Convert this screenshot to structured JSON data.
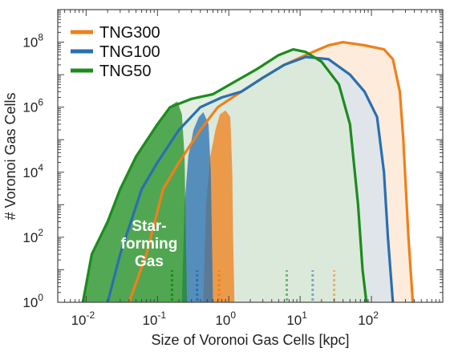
{
  "chart_data": {
    "type": "area",
    "xlabel": "Size of Voronoi Gas Cells [kpc]",
    "ylabel": "# Voronoi Gas Cells",
    "xscale": "log",
    "yscale": "log",
    "xlim": [
      0.004,
      1000
    ],
    "ylim": [
      1,
      1000000000
    ],
    "x_ticks": [
      {
        "value": 0.01,
        "base": "10",
        "exp": "-2"
      },
      {
        "value": 0.1,
        "base": "10",
        "exp": "-1"
      },
      {
        "value": 1,
        "base": "10",
        "exp": "0"
      },
      {
        "value": 10,
        "base": "10",
        "exp": "1"
      },
      {
        "value": 100,
        "base": "10",
        "exp": "2"
      }
    ],
    "y_ticks": [
      {
        "value": 1,
        "base": "10",
        "exp": "0"
      },
      {
        "value": 100,
        "base": "10",
        "exp": "2"
      },
      {
        "value": 10000,
        "base": "10",
        "exp": "4"
      },
      {
        "value": 1000000,
        "base": "10",
        "exp": "6"
      },
      {
        "value": 100000000,
        "base": "10",
        "exp": "8"
      }
    ],
    "legend_position": "top-left",
    "annotation": [
      "Star-",
      "forming",
      "Gas"
    ],
    "series": [
      {
        "name": "TNG300",
        "color": "#f07f1a",
        "all_gas": [
          [
            0.04,
            1
          ],
          [
            0.07,
            30
          ],
          [
            0.12,
            3000
          ],
          [
            0.2,
            20000
          ],
          [
            0.4,
            200000
          ],
          [
            0.7,
            1000000
          ],
          [
            1.5,
            3000000
          ],
          [
            3,
            8000000
          ],
          [
            6,
            20000000
          ],
          [
            12,
            40000000
          ],
          [
            25,
            80000000
          ],
          [
            40,
            100000000
          ],
          [
            80,
            80000000
          ],
          [
            150,
            60000000
          ],
          [
            200,
            30000000
          ],
          [
            250,
            3000000
          ],
          [
            280,
            100000
          ],
          [
            330,
            100
          ],
          [
            380,
            1
          ]
        ],
        "star_forming": [
          [
            0.44,
            1
          ],
          [
            0.48,
            1000
          ],
          [
            0.55,
            30000
          ],
          [
            0.65,
            200000
          ],
          [
            0.75,
            600000
          ],
          [
            0.9,
            800000
          ],
          [
            1.05,
            500000
          ],
          [
            1.12,
            10000
          ],
          [
            1.15,
            100
          ],
          [
            1.2,
            1
          ]
        ],
        "median_all": 30,
        "median_sf": 0.73
      },
      {
        "name": "TNG100",
        "color": "#2a6fb0",
        "all_gas": [
          [
            0.02,
            1
          ],
          [
            0.03,
            30
          ],
          [
            0.06,
            3000
          ],
          [
            0.1,
            20000
          ],
          [
            0.2,
            200000
          ],
          [
            0.4,
            1000000
          ],
          [
            0.8,
            2000000
          ],
          [
            1.5,
            3000000
          ],
          [
            3,
            8000000
          ],
          [
            6,
            20000000
          ],
          [
            12,
            35000000
          ],
          [
            25,
            30000000
          ],
          [
            50,
            10000000
          ],
          [
            80,
            3000000
          ],
          [
            120,
            500000
          ],
          [
            150,
            10000
          ],
          [
            170,
            100
          ],
          [
            200,
            1
          ]
        ],
        "star_forming": [
          [
            0.22,
            1
          ],
          [
            0.24,
            1000
          ],
          [
            0.27,
            30000
          ],
          [
            0.32,
            200000
          ],
          [
            0.38,
            500000
          ],
          [
            0.44,
            700000
          ],
          [
            0.52,
            300000
          ],
          [
            0.56,
            10000
          ],
          [
            0.58,
            100
          ],
          [
            0.6,
            1
          ]
        ],
        "median_all": 15,
        "median_sf": 0.36
      },
      {
        "name": "TNG50",
        "color": "#1c8c1c",
        "all_gas": [
          [
            0.009,
            1
          ],
          [
            0.012,
            30
          ],
          [
            0.02,
            300
          ],
          [
            0.03,
            3000
          ],
          [
            0.05,
            30000
          ],
          [
            0.1,
            300000
          ],
          [
            0.15,
            1000000
          ],
          [
            0.3,
            1800000
          ],
          [
            0.6,
            2500000
          ],
          [
            1.2,
            6000000
          ],
          [
            2.5,
            15000000
          ],
          [
            5,
            40000000
          ],
          [
            8,
            60000000
          ],
          [
            12,
            50000000
          ],
          [
            20,
            25000000
          ],
          [
            35,
            5000000
          ],
          [
            50,
            300000
          ],
          [
            65,
            1000
          ],
          [
            75,
            10
          ],
          [
            85,
            1
          ]
        ],
        "star_forming": [
          [
            0.009,
            1
          ],
          [
            0.012,
            30
          ],
          [
            0.02,
            300
          ],
          [
            0.03,
            3000
          ],
          [
            0.05,
            30000
          ],
          [
            0.08,
            150000
          ],
          [
            0.12,
            500000
          ],
          [
            0.16,
            1200000
          ],
          [
            0.19,
            1500000
          ],
          [
            0.22,
            600000
          ],
          [
            0.24,
            30000
          ],
          [
            0.25,
            100
          ],
          [
            0.26,
            1
          ]
        ],
        "median_all": 6.5,
        "median_sf": 0.16
      }
    ]
  }
}
